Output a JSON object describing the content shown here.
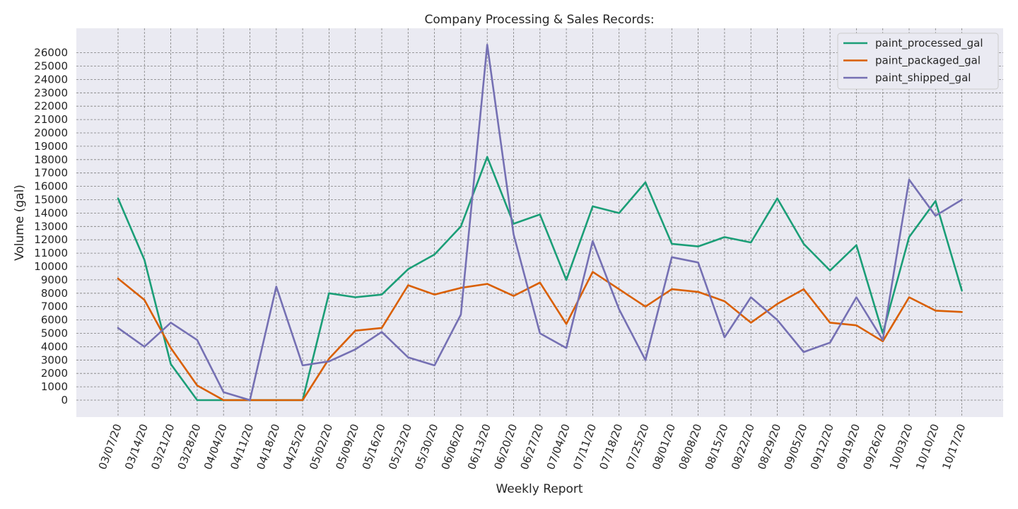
{
  "chart_data": {
    "type": "line",
    "title": "Company Processing & Sales Records:",
    "xlabel": "Weekly Report",
    "ylabel": "Volume (gal)",
    "ylim": [
      -1300,
      27300
    ],
    "yticks": [
      0,
      1000,
      2000,
      3000,
      4000,
      5000,
      6000,
      7000,
      8000,
      9000,
      10000,
      11000,
      12000,
      13000,
      14000,
      15000,
      16000,
      17000,
      18000,
      19000,
      20000,
      21000,
      22000,
      23000,
      24000,
      25000,
      26000
    ],
    "grid": true,
    "legend_position": "top-right",
    "categories": [
      "03/07/20",
      "03/14/20",
      "03/21/20",
      "03/28/20",
      "04/04/20",
      "04/11/20",
      "04/18/20",
      "04/25/20",
      "05/02/20",
      "05/09/20",
      "05/16/20",
      "05/23/20",
      "05/30/20",
      "06/06/20",
      "06/13/20",
      "06/20/20",
      "06/27/20",
      "07/04/20",
      "07/11/20",
      "07/18/20",
      "07/25/20",
      "08/01/20",
      "08/08/20",
      "08/15/20",
      "08/22/20",
      "08/29/20",
      "09/05/20",
      "09/12/20",
      "09/19/20",
      "09/26/20",
      "10/03/20",
      "10/10/20",
      "10/17/20"
    ],
    "series": [
      {
        "name": "paint_processed_gal",
        "color": "#1b9e77",
        "values": [
          15100,
          10500,
          2700,
          0,
          0,
          0,
          0,
          0,
          8000,
          7700,
          7900,
          9800,
          10900,
          13000,
          18200,
          13200,
          13900,
          9000,
          14500,
          14000,
          16300,
          11700,
          11500,
          12200,
          11800,
          15100,
          11700,
          9700,
          11600,
          5000,
          12200,
          14900,
          8200
        ]
      },
      {
        "name": "paint_packaged_gal",
        "color": "#d95f02",
        "values": [
          9100,
          7500,
          3900,
          1100,
          0,
          0,
          0,
          0,
          3100,
          5200,
          5400,
          8600,
          7900,
          8400,
          8700,
          7800,
          8800,
          5700,
          9600,
          8300,
          7000,
          8300,
          8100,
          7400,
          5800,
          7200,
          8300,
          5800,
          5600,
          4400,
          7700,
          6700,
          6600
        ]
      },
      {
        "name": "paint_shipped_gal",
        "color": "#7570b3",
        "values": [
          5400,
          4000,
          5800,
          4500,
          600,
          0,
          8500,
          2600,
          2900,
          3800,
          5100,
          3200,
          2600,
          6400,
          26600,
          12400,
          5000,
          3900,
          11900,
          6800,
          3000,
          10700,
          10300,
          4700,
          7700,
          6000,
          3600,
          4300,
          7700,
          4500,
          16500,
          13800,
          15000
        ]
      }
    ],
    "plot_background": "#eaeaf2",
    "grid_color": "#808080"
  }
}
